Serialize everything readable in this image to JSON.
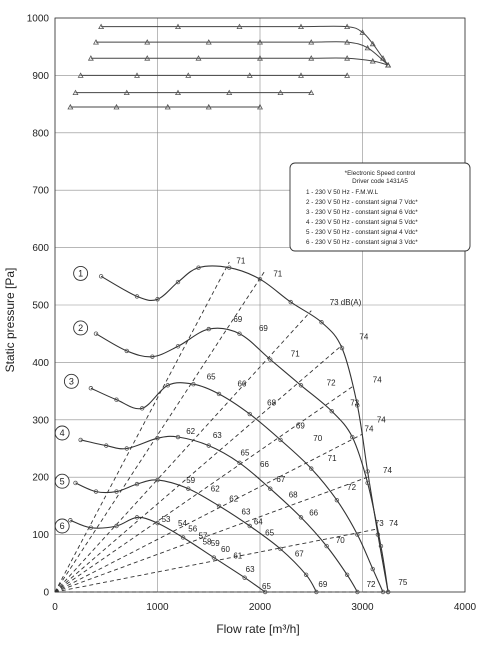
{
  "chart_data": {
    "type": "line",
    "xlabel": "Flow rate [m³/h]",
    "ylabel": "Static pressure [Pa]",
    "xlim": [
      0,
      4000
    ],
    "ylim": [
      0,
      1000
    ],
    "x_ticks": [
      0,
      1000,
      2000,
      3000,
      4000
    ],
    "y_ticks": [
      0,
      100,
      200,
      300,
      400,
      500,
      600,
      700,
      800,
      900,
      1000
    ],
    "grid": true,
    "legend": {
      "position": "right",
      "title_lines": [
        "*Electronic Speed control",
        "Driver code  1431A5"
      ],
      "entries": [
        "1 - 230 V 50 Hz - F.M.W.L",
        "2 - 230 V 50 Hz - constant signal 7 Vdc*",
        "3 - 230 V 50 Hz - constant signal 6 Vdc*",
        "4 - 230 V 50 Hz - constant signal 5 Vdc*",
        "5 - 230 V 50 Hz - constant signal 4 Vdc*",
        "6 - 230 V 50 Hz - constant signal 3 Vdc*"
      ]
    },
    "series": [
      {
        "name": "1",
        "points": [
          [
            450,
            550
          ],
          [
            800,
            515
          ],
          [
            1000,
            510
          ],
          [
            1200,
            540
          ],
          [
            1400,
            565
          ],
          [
            1700,
            565
          ],
          [
            2000,
            545
          ],
          [
            2300,
            505
          ],
          [
            2600,
            470
          ],
          [
            2800,
            425
          ],
          [
            2950,
            325
          ],
          [
            3050,
            210
          ],
          [
            3150,
            100
          ],
          [
            3250,
            0
          ]
        ]
      },
      {
        "name": "2",
        "points": [
          [
            400,
            450
          ],
          [
            700,
            420
          ],
          [
            950,
            410
          ],
          [
            1200,
            428
          ],
          [
            1500,
            458
          ],
          [
            1800,
            450
          ],
          [
            2100,
            405
          ],
          [
            2400,
            360
          ],
          [
            2700,
            315
          ],
          [
            2900,
            270
          ],
          [
            3050,
            190
          ],
          [
            3180,
            80
          ],
          [
            3250,
            0
          ]
        ]
      },
      {
        "name": "3",
        "points": [
          [
            350,
            355
          ],
          [
            600,
            335
          ],
          [
            850,
            320
          ],
          [
            1100,
            360
          ],
          [
            1350,
            362
          ],
          [
            1600,
            345
          ],
          [
            1900,
            310
          ],
          [
            2200,
            265
          ],
          [
            2500,
            215
          ],
          [
            2750,
            160
          ],
          [
            2950,
            100
          ],
          [
            3100,
            40
          ],
          [
            3200,
            0
          ]
        ]
      },
      {
        "name": "4",
        "points": [
          [
            250,
            265
          ],
          [
            500,
            255
          ],
          [
            700,
            250
          ],
          [
            1000,
            268
          ],
          [
            1200,
            270
          ],
          [
            1500,
            255
          ],
          [
            1800,
            225
          ],
          [
            2100,
            180
          ],
          [
            2400,
            130
          ],
          [
            2650,
            80
          ],
          [
            2850,
            30
          ],
          [
            2950,
            0
          ]
        ]
      },
      {
        "name": "5",
        "points": [
          [
            200,
            190
          ],
          [
            400,
            175
          ],
          [
            600,
            175
          ],
          [
            800,
            188
          ],
          [
            1000,
            195
          ],
          [
            1300,
            180
          ],
          [
            1600,
            150
          ],
          [
            1900,
            115
          ],
          [
            2200,
            75
          ],
          [
            2450,
            30
          ],
          [
            2550,
            0
          ]
        ]
      },
      {
        "name": "6",
        "points": [
          [
            150,
            125
          ],
          [
            350,
            112
          ],
          [
            600,
            115
          ],
          [
            800,
            130
          ],
          [
            1000,
            120
          ],
          [
            1250,
            95
          ],
          [
            1550,
            60
          ],
          [
            1850,
            25
          ],
          [
            2050,
            0
          ]
        ]
      }
    ],
    "flat_series": [
      {
        "points": [
          [
            450,
            985
          ],
          [
            1200,
            985
          ],
          [
            1800,
            985
          ],
          [
            2400,
            985
          ],
          [
            2850,
            985
          ],
          [
            3000,
            975
          ],
          [
            3100,
            955
          ],
          [
            3200,
            930
          ],
          [
            3250,
            918
          ]
        ]
      },
      {
        "points": [
          [
            400,
            958
          ],
          [
            900,
            958
          ],
          [
            1500,
            958
          ],
          [
            2000,
            958
          ],
          [
            2500,
            958
          ],
          [
            2850,
            958
          ],
          [
            3050,
            948
          ],
          [
            3250,
            918
          ]
        ]
      },
      {
        "points": [
          [
            350,
            930
          ],
          [
            900,
            930
          ],
          [
            1400,
            930
          ],
          [
            2000,
            930
          ],
          [
            2500,
            930
          ],
          [
            2850,
            930
          ],
          [
            3100,
            925
          ],
          [
            3250,
            918
          ]
        ]
      },
      {
        "points": [
          [
            250,
            900
          ],
          [
            800,
            900
          ],
          [
            1300,
            900
          ],
          [
            1900,
            900
          ],
          [
            2400,
            900
          ],
          [
            2850,
            900
          ]
        ]
      },
      {
        "points": [
          [
            200,
            870
          ],
          [
            700,
            870
          ],
          [
            1200,
            870
          ],
          [
            1700,
            870
          ],
          [
            2200,
            870
          ],
          [
            2500,
            870
          ]
        ]
      },
      {
        "points": [
          [
            150,
            845
          ],
          [
            600,
            845
          ],
          [
            1100,
            845
          ],
          [
            1500,
            845
          ],
          [
            2000,
            845
          ]
        ]
      }
    ],
    "db_lines": [
      {
        "points": [
          [
            0,
            0
          ],
          [
            1700,
            575
          ]
        ]
      },
      {
        "points": [
          [
            0,
            0
          ],
          [
            2050,
            560
          ]
        ]
      },
      {
        "points": [
          [
            0,
            0
          ],
          [
            2500,
            490
          ]
        ]
      },
      {
        "points": [
          [
            0,
            0
          ],
          [
            2800,
            430
          ]
        ]
      },
      {
        "points": [
          [
            0,
            0
          ],
          [
            2920,
            360
          ]
        ]
      },
      {
        "points": [
          [
            0,
            0
          ],
          [
            3000,
            275
          ]
        ]
      },
      {
        "points": [
          [
            0,
            0
          ],
          [
            3050,
            200
          ]
        ]
      },
      {
        "points": [
          [
            0,
            0
          ],
          [
            3150,
            110
          ]
        ]
      },
      {
        "points": [
          [
            0,
            0
          ],
          [
            3250,
            0
          ]
        ]
      }
    ],
    "db_labels": [
      {
        "text": "71",
        "x": 1770,
        "y": 572
      },
      {
        "text": "71",
        "x": 2130,
        "y": 550
      },
      {
        "text": "73 dB(A)",
        "x": 2680,
        "y": 500
      },
      {
        "text": "69",
        "x": 1740,
        "y": 470
      },
      {
        "text": "69",
        "x": 1990,
        "y": 455
      },
      {
        "text": "74",
        "x": 2970,
        "y": 440
      },
      {
        "text": "71",
        "x": 2300,
        "y": 410
      },
      {
        "text": "65",
        "x": 1480,
        "y": 370
      },
      {
        "text": "66",
        "x": 1780,
        "y": 358
      },
      {
        "text": "72",
        "x": 2650,
        "y": 360
      },
      {
        "text": "74",
        "x": 3100,
        "y": 365
      },
      {
        "text": "68",
        "x": 2070,
        "y": 325
      },
      {
        "text": "73",
        "x": 2880,
        "y": 325
      },
      {
        "text": "62",
        "x": 1280,
        "y": 275
      },
      {
        "text": "63",
        "x": 1540,
        "y": 268
      },
      {
        "text": "69",
        "x": 2350,
        "y": 285
      },
      {
        "text": "74",
        "x": 3140,
        "y": 295
      },
      {
        "text": "70",
        "x": 2520,
        "y": 263
      },
      {
        "text": "74",
        "x": 3020,
        "y": 280
      },
      {
        "text": "65",
        "x": 1810,
        "y": 238
      },
      {
        "text": "71",
        "x": 2660,
        "y": 228
      },
      {
        "text": "66",
        "x": 2000,
        "y": 218
      },
      {
        "text": "59",
        "x": 1280,
        "y": 190
      },
      {
        "text": "67",
        "x": 2160,
        "y": 192
      },
      {
        "text": "74",
        "x": 3200,
        "y": 207
      },
      {
        "text": "62",
        "x": 1520,
        "y": 175
      },
      {
        "text": "68",
        "x": 2280,
        "y": 165
      },
      {
        "text": "72",
        "x": 2850,
        "y": 178
      },
      {
        "text": "62",
        "x": 1700,
        "y": 158
      },
      {
        "text": "63",
        "x": 1820,
        "y": 135
      },
      {
        "text": "66",
        "x": 2480,
        "y": 133
      },
      {
        "text": "64",
        "x": 1940,
        "y": 118
      },
      {
        "text": "53",
        "x": 1040,
        "y": 122
      },
      {
        "text": "54",
        "x": 1200,
        "y": 115
      },
      {
        "text": "73",
        "x": 3120,
        "y": 115
      },
      {
        "text": "74",
        "x": 3260,
        "y": 115
      },
      {
        "text": "56",
        "x": 1300,
        "y": 105
      },
      {
        "text": "57",
        "x": 1400,
        "y": 93
      },
      {
        "text": "58",
        "x": 1440,
        "y": 83
      },
      {
        "text": "59",
        "x": 1520,
        "y": 80
      },
      {
        "text": "65",
        "x": 2050,
        "y": 98
      },
      {
        "text": "70",
        "x": 2740,
        "y": 85
      },
      {
        "text": "60",
        "x": 1620,
        "y": 70
      },
      {
        "text": "61",
        "x": 1740,
        "y": 58
      },
      {
        "text": "67",
        "x": 2340,
        "y": 62
      },
      {
        "text": "63",
        "x": 1860,
        "y": 35
      },
      {
        "text": "65",
        "x": 2020,
        "y": 5
      },
      {
        "text": "69",
        "x": 2570,
        "y": 9
      },
      {
        "text": "72",
        "x": 3040,
        "y": 9
      },
      {
        "text": "75",
        "x": 3350,
        "y": 12
      }
    ],
    "curve_numbers": [
      {
        "text": "1",
        "x": 250,
        "y": 555
      },
      {
        "text": "2",
        "x": 250,
        "y": 460
      },
      {
        "text": "3",
        "x": 160,
        "y": 367
      },
      {
        "text": "4",
        "x": 70,
        "y": 277
      },
      {
        "text": "5",
        "x": 70,
        "y": 193
      },
      {
        "text": "6",
        "x": 70,
        "y": 115
      }
    ]
  }
}
